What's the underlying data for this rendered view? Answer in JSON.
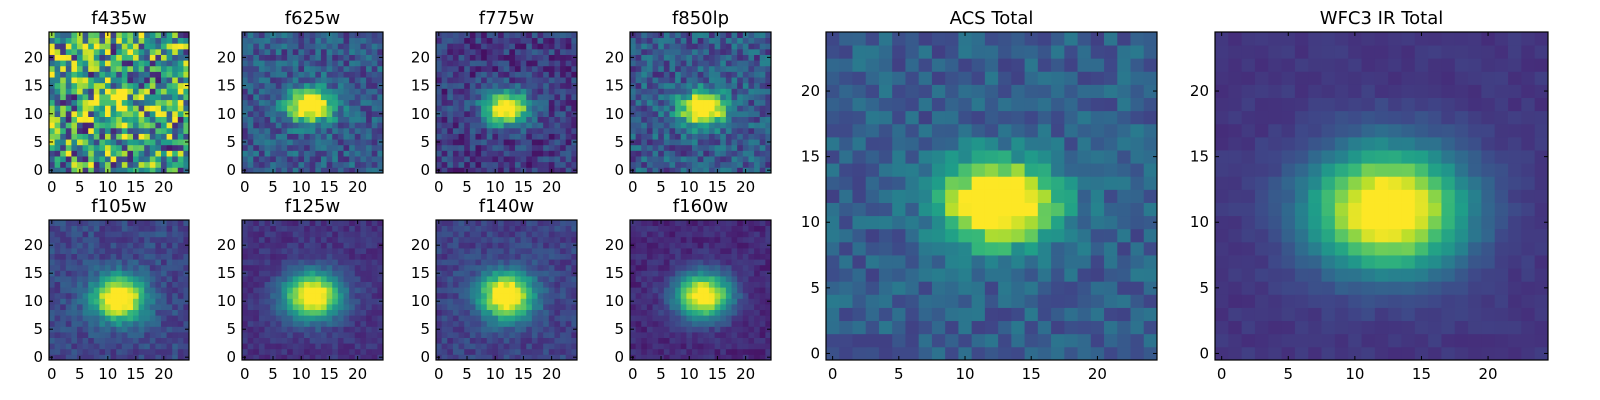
{
  "figure": {
    "background": "#ffffff",
    "colormap": "viridis"
  },
  "chart_data": [
    {
      "type": "heatmap",
      "title": "f435w",
      "grid_size": 25,
      "xlim": [
        -0.5,
        24.5
      ],
      "ylim": [
        -0.5,
        24.5
      ],
      "xticks": [
        0,
        5,
        10,
        15,
        20
      ],
      "yticks": [
        0,
        5,
        10,
        15,
        20
      ],
      "source_center": [
        11.5,
        12.0
      ],
      "source_sigma": [
        2.6,
        2.2
      ],
      "peak": 0.35,
      "noise": 0.95,
      "background": 0.55,
      "seed": 11
    },
    {
      "type": "heatmap",
      "title": "f625w",
      "grid_size": 25,
      "xlim": [
        -0.5,
        24.5
      ],
      "ylim": [
        -0.5,
        24.5
      ],
      "xticks": [
        0,
        5,
        10,
        15,
        20
      ],
      "yticks": [
        0,
        5,
        10,
        15,
        20
      ],
      "source_center": [
        11.5,
        11.5
      ],
      "source_sigma": [
        2.8,
        2.0
      ],
      "peak": 1.0,
      "noise": 0.32,
      "background": 0.28,
      "seed": 23
    },
    {
      "type": "heatmap",
      "title": "f775w",
      "grid_size": 25,
      "xlim": [
        -0.5,
        24.5
      ],
      "ylim": [
        -0.5,
        24.5
      ],
      "xticks": [
        0,
        5,
        10,
        15,
        20
      ],
      "yticks": [
        0,
        5,
        10,
        15,
        20
      ],
      "source_center": [
        12.0,
        11.0
      ],
      "source_sigma": [
        2.8,
        2.0
      ],
      "peak": 1.0,
      "noise": 0.28,
      "background": 0.18,
      "seed": 37
    },
    {
      "type": "heatmap",
      "title": "f850lp",
      "grid_size": 25,
      "xlim": [
        -0.5,
        24.5
      ],
      "ylim": [
        -0.5,
        24.5
      ],
      "xticks": [
        0,
        5,
        10,
        15,
        20
      ],
      "yticks": [
        0,
        5,
        10,
        15,
        20
      ],
      "source_center": [
        12.5,
        11.0
      ],
      "source_sigma": [
        2.8,
        2.1
      ],
      "peak": 1.0,
      "noise": 0.34,
      "background": 0.28,
      "seed": 41
    },
    {
      "type": "heatmap",
      "title": "f105w",
      "grid_size": 25,
      "xlim": [
        -0.5,
        24.5
      ],
      "ylim": [
        -0.5,
        24.5
      ],
      "xticks": [
        0,
        5,
        10,
        15,
        20
      ],
      "yticks": [
        0,
        5,
        10,
        15,
        20
      ],
      "source_center": [
        12.0,
        10.5
      ],
      "source_sigma": [
        3.2,
        2.7
      ],
      "peak": 1.0,
      "noise": 0.18,
      "background": 0.22,
      "seed": 53
    },
    {
      "type": "heatmap",
      "title": "f125w",
      "grid_size": 25,
      "xlim": [
        -0.5,
        24.5
      ],
      "ylim": [
        -0.5,
        24.5
      ],
      "xticks": [
        0,
        5,
        10,
        15,
        20
      ],
      "yticks": [
        0,
        5,
        10,
        15,
        20
      ],
      "source_center": [
        12.0,
        11.0
      ],
      "source_sigma": [
        3.5,
        2.9
      ],
      "peak": 1.0,
      "noise": 0.12,
      "background": 0.15,
      "seed": 67
    },
    {
      "type": "heatmap",
      "title": "f140w",
      "grid_size": 25,
      "xlim": [
        -0.5,
        24.5
      ],
      "ylim": [
        -0.5,
        24.5
      ],
      "xticks": [
        0,
        5,
        10,
        15,
        20
      ],
      "yticks": [
        0,
        5,
        10,
        15,
        20
      ],
      "source_center": [
        12.0,
        11.0
      ],
      "source_sigma": [
        3.3,
        2.8
      ],
      "peak": 1.0,
      "noise": 0.16,
      "background": 0.2,
      "seed": 71
    },
    {
      "type": "heatmap",
      "title": "f160w",
      "grid_size": 25,
      "xlim": [
        -0.5,
        24.5
      ],
      "ylim": [
        -0.5,
        24.5
      ],
      "xticks": [
        0,
        5,
        10,
        15,
        20
      ],
      "yticks": [
        0,
        5,
        10,
        15,
        20
      ],
      "source_center": [
        12.5,
        11.0
      ],
      "source_sigma": [
        3.4,
        2.8
      ],
      "peak": 1.0,
      "noise": 0.12,
      "background": 0.12,
      "seed": 83
    },
    {
      "type": "heatmap",
      "title": "ACS Total",
      "grid_size": 25,
      "xlim": [
        -0.5,
        24.5
      ],
      "ylim": [
        -0.5,
        24.5
      ],
      "xticks": [
        0,
        5,
        10,
        15,
        20
      ],
      "yticks": [
        0,
        5,
        10,
        15,
        20
      ],
      "source_center": [
        12.5,
        11.5
      ],
      "source_sigma": [
        3.0,
        2.2
      ],
      "peak": 1.0,
      "noise": 0.22,
      "background": 0.3,
      "seed": 97
    },
    {
      "type": "heatmap",
      "title": "WFC3 IR Total",
      "grid_size": 25,
      "xlim": [
        -0.5,
        24.5
      ],
      "ylim": [
        -0.5,
        24.5
      ],
      "xticks": [
        0,
        5,
        10,
        15,
        20
      ],
      "yticks": [
        0,
        5,
        10,
        15,
        20
      ],
      "source_center": [
        12.5,
        11.0
      ],
      "source_sigma": [
        4.0,
        3.2
      ],
      "peak": 1.0,
      "noise": 0.06,
      "background": 0.16,
      "seed": 101
    }
  ]
}
